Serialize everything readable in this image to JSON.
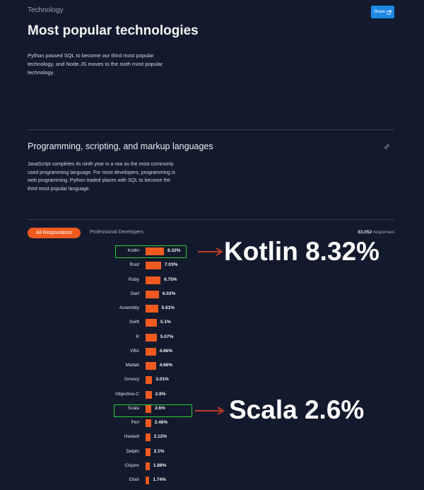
{
  "header": {
    "section_label": "Technology",
    "share_label": "Share",
    "title": "Most popular technologies",
    "intro": "Python passed SQL to become our third most popular technology, and Node.JS moves to the sixth most popular technology."
  },
  "subsection": {
    "title": "Programming, scripting, and markup languages",
    "description": "JavaScript completes its ninth year in a row as the most commonly used programming language. For most developers, programming is web programming. Python traded places with SQL to become the third most popular language."
  },
  "filters": {
    "tabs": [
      "All Respondents",
      "Professional Developers"
    ],
    "active_tab": "All Respondents",
    "responses_count": "83,052",
    "responses_label": "responses"
  },
  "chart_data": {
    "type": "bar",
    "orientation": "horizontal",
    "categories": [
      "Kotlin",
      "Rust",
      "Ruby",
      "Dart",
      "Assembly",
      "Swift",
      "R",
      "VBA",
      "Matlab",
      "Groovy",
      "Objective-C",
      "Scala",
      "Perl",
      "Haskell",
      "Delphi",
      "Clojure",
      "Elixir"
    ],
    "values": [
      8.32,
      7.03,
      6.75,
      6.02,
      5.61,
      5.1,
      5.07,
      4.66,
      4.66,
      3.01,
      2.8,
      2.6,
      2.46,
      2.12,
      2.1,
      1.88,
      1.74
    ],
    "value_labels": [
      "8.32%",
      "7.03%",
      "6.75%",
      "6.02%",
      "5.61%",
      "5.1%",
      "5.07%",
      "4.66%",
      "4.66%",
      "3.01%",
      "2.8%",
      "2.6%",
      "2.46%",
      "2.12%",
      "2.1%",
      "1.88%",
      "1.74%"
    ],
    "bar_color": "#f05a1f",
    "highlighted": [
      "Kotlin",
      "Scala"
    ]
  },
  "annotations": {
    "kotlin_callout": "Kotlin 8.32%",
    "scala_callout": "Scala 2.6%",
    "highlight_color": "#2ecc40",
    "arrow_color": "#c0392b"
  }
}
